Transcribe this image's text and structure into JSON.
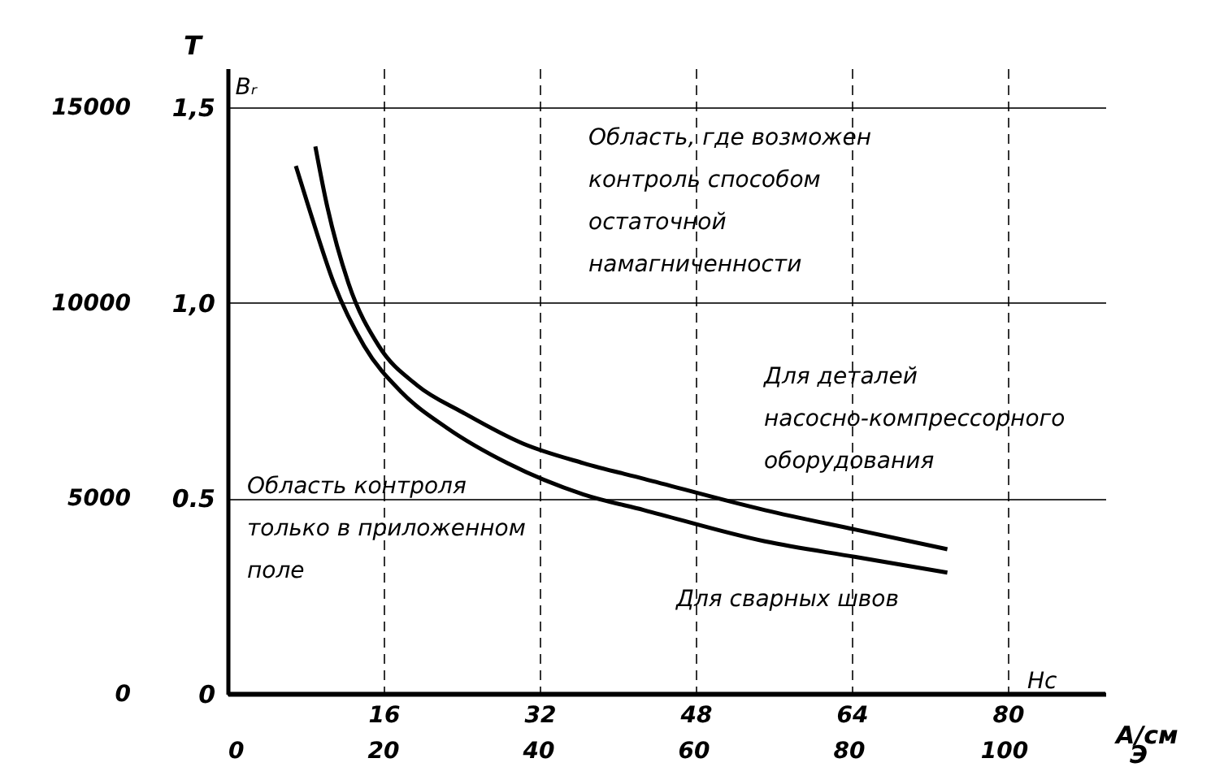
{
  "chart_data": {
    "type": "line",
    "xlabel": "А/см",
    "x2label": "Э",
    "ylabel": "Т",
    "xlim": [
      0,
      90
    ],
    "xticks": [
      16,
      32,
      48,
      64,
      80
    ],
    "x2lim": [
      0,
      113.1
    ],
    "x2ticks": [
      0,
      20,
      40,
      60,
      80,
      100
    ],
    "ylim": [
      0,
      1.6
    ],
    "yticks": [
      0,
      0.5,
      {
        "value": 1.0,
        "label": "1,0"
      },
      {
        "value": 1.5,
        "label": "1,5"
      }
    ],
    "y2lim": [
      0,
      16000
    ],
    "y2ticks": [
      0,
      5000,
      10000,
      15000
    ],
    "grid": true,
    "line_style": "solid",
    "series": [
      {
        "name": "Для деталей насосно-компрессорного оборудования",
        "color": "#000000",
        "x": [
          9.0,
          10.1,
          12.4,
          15.5,
          19.4,
          24.1,
          30.3,
          36.5,
          42.7,
          55.1,
          64.4,
          73.8
        ],
        "values": [
          1.4,
          1.26,
          1.05,
          0.89,
          0.79,
          0.72,
          0.64,
          0.59,
          0.55,
          0.47,
          0.42,
          0.37
        ]
      },
      {
        "name": "Для сварных швов",
        "color": "#000000",
        "x": [
          7.0,
          8.5,
          10.9,
          14.0,
          17.9,
          22.5,
          28.7,
          36.5,
          42.7,
          55.1,
          64.4,
          73.8
        ],
        "values": [
          1.35,
          1.23,
          1.05,
          0.89,
          0.77,
          0.68,
          0.59,
          0.51,
          0.47,
          0.39,
          0.35,
          0.31
        ]
      }
    ],
    "annotations": [
      "Область, где возможен контроль способом остаточной намагниченности",
      "Область контроля только в приложенном поле",
      "Hc",
      "Bᵣ"
    ]
  }
}
